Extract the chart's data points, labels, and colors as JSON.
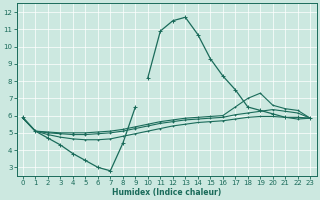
{
  "xlabel": "Humidex (Indice chaleur)",
  "xlim": [
    -0.5,
    23.5
  ],
  "ylim": [
    2.5,
    12.5
  ],
  "xticks": [
    0,
    1,
    2,
    3,
    4,
    5,
    6,
    7,
    8,
    9,
    10,
    11,
    12,
    13,
    14,
    15,
    16,
    17,
    18,
    19,
    20,
    21,
    22,
    23
  ],
  "yticks": [
    3,
    4,
    5,
    6,
    7,
    8,
    9,
    10,
    11,
    12
  ],
  "bg_color": "#cce8e0",
  "line_color": "#1a6b5a",
  "grid_color": "#ffffff",
  "peak_seg1_x": [
    0,
    1,
    2,
    3,
    4,
    5,
    6,
    7,
    8,
    9
  ],
  "peak_seg1_y": [
    5.9,
    5.1,
    4.7,
    4.3,
    3.8,
    3.4,
    3.0,
    2.8,
    4.4,
    6.5
  ],
  "peak_seg2_x": [
    10,
    11,
    12,
    13,
    14,
    15,
    16,
    17,
    18,
    19,
    20,
    21,
    22,
    23
  ],
  "peak_seg2_y": [
    8.2,
    10.9,
    11.5,
    11.7,
    10.7,
    9.3,
    8.3,
    7.5,
    6.5,
    6.3,
    6.1,
    5.9,
    5.9,
    5.85
  ],
  "upper_x": [
    0,
    1,
    2,
    3,
    4,
    5,
    6,
    7,
    8,
    9,
    10,
    11,
    12,
    13,
    14,
    15,
    16,
    17,
    18,
    19,
    20,
    21,
    22,
    23
  ],
  "upper_y": [
    5.85,
    5.1,
    5.05,
    5.0,
    5.0,
    5.0,
    5.05,
    5.1,
    5.2,
    5.35,
    5.5,
    5.65,
    5.75,
    5.85,
    5.9,
    5.95,
    6.0,
    6.5,
    7.0,
    7.3,
    6.6,
    6.4,
    6.3,
    5.85
  ],
  "mid_x": [
    0,
    1,
    2,
    3,
    4,
    5,
    6,
    7,
    8,
    9,
    10,
    11,
    12,
    13,
    14,
    15,
    16,
    17,
    18,
    19,
    20,
    21,
    22,
    23
  ],
  "mid_y": [
    5.85,
    5.1,
    5.0,
    4.95,
    4.9,
    4.9,
    4.95,
    5.0,
    5.1,
    5.25,
    5.4,
    5.55,
    5.65,
    5.75,
    5.8,
    5.85,
    5.9,
    6.05,
    6.15,
    6.25,
    6.35,
    6.25,
    6.15,
    5.85
  ],
  "lower_x": [
    0,
    1,
    2,
    3,
    4,
    5,
    6,
    7,
    8,
    9,
    10,
    11,
    12,
    13,
    14,
    15,
    16,
    17,
    18,
    19,
    20,
    21,
    22,
    23
  ],
  "lower_y": [
    5.85,
    5.1,
    4.9,
    4.75,
    4.65,
    4.6,
    4.6,
    4.65,
    4.8,
    4.95,
    5.1,
    5.25,
    5.4,
    5.5,
    5.6,
    5.65,
    5.7,
    5.8,
    5.9,
    5.95,
    5.95,
    5.9,
    5.8,
    5.85
  ]
}
